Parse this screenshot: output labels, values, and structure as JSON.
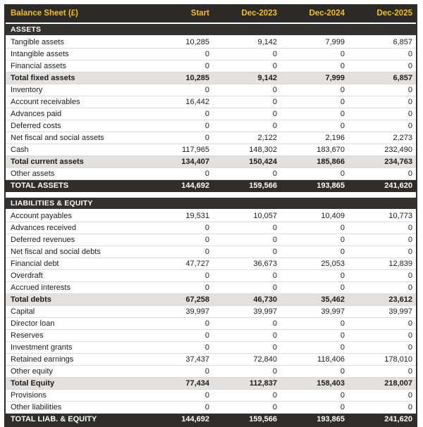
{
  "colors": {
    "header_bg": "#2B2A28",
    "header_text": "#F6BE15",
    "section_bg": "#343230",
    "grand_bg": "#2E2D2B",
    "subtotal_bg": "#E2E1E0",
    "row_border": "#DCDCDC"
  },
  "table": {
    "title": "Balance Sheet (£)",
    "columns": [
      "Start",
      "Dec-2023",
      "Dec-2024",
      "Dec-2025"
    ],
    "sections": [
      {
        "label": "ASSETS",
        "rows": [
          {
            "label": "Tangible assets",
            "style": "normal",
            "values": [
              "10,285",
              "9,142",
              "7,999",
              "6,857"
            ]
          },
          {
            "label": "Intangible assets",
            "style": "normal",
            "values": [
              "0",
              "0",
              "0",
              "0"
            ]
          },
          {
            "label": "Financial assets",
            "style": "normal",
            "values": [
              "0",
              "0",
              "0",
              "0"
            ]
          },
          {
            "label": "Total fixed assets",
            "style": "subtotal",
            "values": [
              "10,285",
              "9,142",
              "7,999",
              "6,857"
            ]
          },
          {
            "label": "Inventory",
            "style": "normal",
            "values": [
              "0",
              "0",
              "0",
              "0"
            ]
          },
          {
            "label": "Account receivables",
            "style": "normal",
            "values": [
              "16,442",
              "0",
              "0",
              "0"
            ]
          },
          {
            "label": "Advances paid",
            "style": "normal",
            "values": [
              "0",
              "0",
              "0",
              "0"
            ]
          },
          {
            "label": "Deferred costs",
            "style": "normal",
            "values": [
              "0",
              "0",
              "0",
              "0"
            ]
          },
          {
            "label": "Net fiscal and social assets",
            "style": "normal",
            "values": [
              "0",
              "2,122",
              "2,196",
              "2,273"
            ]
          },
          {
            "label": "Cash",
            "style": "normal",
            "values": [
              "117,965",
              "148,302",
              "183,670",
              "232,490"
            ]
          },
          {
            "label": "Total current assets",
            "style": "subtotal",
            "values": [
              "134,407",
              "150,424",
              "185,866",
              "234,763"
            ]
          },
          {
            "label": "Other assets",
            "style": "normal",
            "values": [
              "0",
              "0",
              "0",
              "0"
            ]
          },
          {
            "label": "TOTAL ASSETS",
            "style": "grand",
            "values": [
              "144,692",
              "159,566",
              "193,865",
              "241,620"
            ]
          }
        ]
      },
      {
        "label": "LIABILITIES & EQUITY",
        "rows": [
          {
            "label": "Account payables",
            "style": "normal",
            "values": [
              "19,531",
              "10,057",
              "10,409",
              "10,773"
            ]
          },
          {
            "label": "Advances received",
            "style": "normal",
            "values": [
              "0",
              "0",
              "0",
              "0"
            ]
          },
          {
            "label": "Deferred revenues",
            "style": "normal",
            "values": [
              "0",
              "0",
              "0",
              "0"
            ]
          },
          {
            "label": "Net fiscal and social debts",
            "style": "normal",
            "values": [
              "0",
              "0",
              "0",
              "0"
            ]
          },
          {
            "label": "Financial debt",
            "style": "normal",
            "values": [
              "47,727",
              "36,673",
              "25,053",
              "12,839"
            ]
          },
          {
            "label": "Overdraft",
            "style": "normal",
            "values": [
              "0",
              "0",
              "0",
              "0"
            ]
          },
          {
            "label": "Accrued interests",
            "style": "normal",
            "values": [
              "0",
              "0",
              "0",
              "0"
            ]
          },
          {
            "label": "Total debts",
            "style": "subtotal",
            "values": [
              "67,258",
              "46,730",
              "35,462",
              "23,612"
            ]
          },
          {
            "label": "Capital",
            "style": "normal",
            "values": [
              "39,997",
              "39,997",
              "39,997",
              "39,997"
            ]
          },
          {
            "label": "Director loan",
            "style": "normal",
            "values": [
              "0",
              "0",
              "0",
              "0"
            ]
          },
          {
            "label": "Reserves",
            "style": "normal",
            "values": [
              "0",
              "0",
              "0",
              "0"
            ]
          },
          {
            "label": "Investment grants",
            "style": "normal",
            "values": [
              "0",
              "0",
              "0",
              "0"
            ]
          },
          {
            "label": "Retained earnings",
            "style": "normal",
            "values": [
              "37,437",
              "72,840",
              "118,406",
              "178,010"
            ]
          },
          {
            "label": "Other equity",
            "style": "normal",
            "values": [
              "0",
              "0",
              "0",
              "0"
            ]
          },
          {
            "label": "Total Equity",
            "style": "subtotal",
            "values": [
              "77,434",
              "112,837",
              "158,403",
              "218,007"
            ]
          },
          {
            "label": "Provisions",
            "style": "normal",
            "values": [
              "0",
              "0",
              "0",
              "0"
            ]
          },
          {
            "label": "Other liabilities",
            "style": "normal",
            "values": [
              "0",
              "0",
              "0",
              "0"
            ]
          },
          {
            "label": "TOTAL LIAB. & EQUITY",
            "style": "grand",
            "values": [
              "144,692",
              "159,566",
              "193,865",
              "241,620"
            ]
          }
        ]
      }
    ]
  }
}
